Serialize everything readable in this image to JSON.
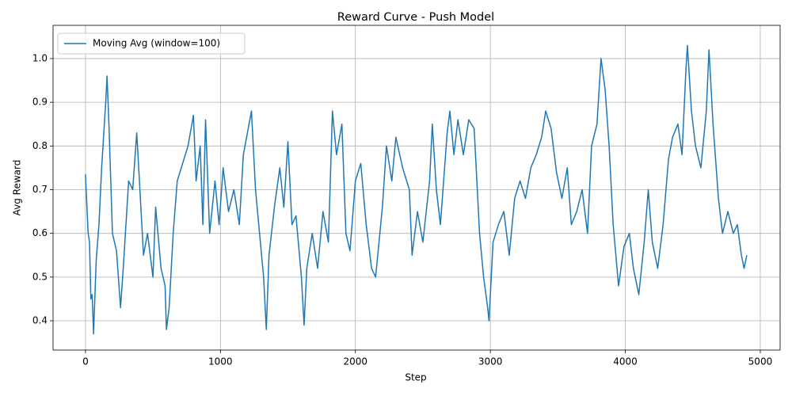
{
  "chart_data": {
    "type": "line",
    "title": "Reward Curve - Push Model",
    "x_label": "Step",
    "y_label": "Avg Reward",
    "x": [
      0,
      20,
      30,
      40,
      50,
      60,
      80,
      100,
      120,
      140,
      150,
      160,
      175,
      200,
      230,
      260,
      280,
      300,
      320,
      350,
      380,
      400,
      430,
      460,
      500,
      520,
      560,
      590,
      600,
      620,
      650,
      680,
      720,
      760,
      800,
      820,
      850,
      870,
      890,
      920,
      960,
      990,
      1020,
      1060,
      1100,
      1140,
      1170,
      1200,
      1230,
      1260,
      1290,
      1320,
      1340,
      1360,
      1400,
      1440,
      1470,
      1500,
      1530,
      1560,
      1600,
      1620,
      1640,
      1680,
      1720,
      1760,
      1800,
      1830,
      1860,
      1900,
      1930,
      1960,
      2000,
      2040,
      2080,
      2120,
      2150,
      2200,
      2230,
      2270,
      2300,
      2350,
      2400,
      2420,
      2460,
      2500,
      2550,
      2570,
      2600,
      2630,
      2680,
      2700,
      2730,
      2760,
      2800,
      2840,
      2880,
      2920,
      2950,
      2980,
      2990,
      3020,
      3060,
      3100,
      3140,
      3180,
      3220,
      3260,
      3300,
      3340,
      3380,
      3410,
      3450,
      3490,
      3530,
      3570,
      3600,
      3640,
      3680,
      3720,
      3750,
      3790,
      3820,
      3850,
      3880,
      3910,
      3950,
      3990,
      4030,
      4060,
      4100,
      4140,
      4170,
      4200,
      4240,
      4280,
      4320,
      4350,
      4390,
      4420,
      4450,
      4460,
      4490,
      4520,
      4560,
      4600,
      4620,
      4650,
      4690,
      4720,
      4760,
      4800,
      4830,
      4860,
      4880,
      4900
    ],
    "series": [
      {
        "name": "Moving Avg (window=100)",
        "color": "#1f77b4",
        "values": [
          0.735,
          0.6,
          0.58,
          0.45,
          0.46,
          0.37,
          0.54,
          0.62,
          0.75,
          0.85,
          0.9,
          0.96,
          0.84,
          0.6,
          0.56,
          0.43,
          0.52,
          0.62,
          0.72,
          0.7,
          0.83,
          0.72,
          0.55,
          0.6,
          0.5,
          0.66,
          0.52,
          0.48,
          0.38,
          0.43,
          0.6,
          0.72,
          0.76,
          0.8,
          0.87,
          0.72,
          0.8,
          0.62,
          0.86,
          0.6,
          0.72,
          0.62,
          0.75,
          0.65,
          0.7,
          0.62,
          0.78,
          0.83,
          0.88,
          0.7,
          0.6,
          0.5,
          0.38,
          0.55,
          0.66,
          0.75,
          0.66,
          0.81,
          0.62,
          0.64,
          0.5,
          0.39,
          0.52,
          0.6,
          0.52,
          0.65,
          0.58,
          0.88,
          0.78,
          0.85,
          0.6,
          0.56,
          0.72,
          0.76,
          0.62,
          0.52,
          0.5,
          0.66,
          0.8,
          0.72,
          0.82,
          0.75,
          0.7,
          0.55,
          0.65,
          0.58,
          0.72,
          0.85,
          0.7,
          0.62,
          0.83,
          0.88,
          0.78,
          0.86,
          0.78,
          0.86,
          0.84,
          0.6,
          0.5,
          0.43,
          0.4,
          0.58,
          0.62,
          0.65,
          0.55,
          0.68,
          0.72,
          0.68,
          0.75,
          0.78,
          0.82,
          0.88,
          0.84,
          0.74,
          0.68,
          0.75,
          0.62,
          0.65,
          0.7,
          0.6,
          0.8,
          0.85,
          1.0,
          0.93,
          0.8,
          0.62,
          0.48,
          0.57,
          0.6,
          0.52,
          0.46,
          0.58,
          0.7,
          0.58,
          0.52,
          0.62,
          0.77,
          0.82,
          0.85,
          0.78,
          0.98,
          1.03,
          0.88,
          0.8,
          0.75,
          0.88,
          1.02,
          0.85,
          0.68,
          0.6,
          0.65,
          0.6,
          0.62,
          0.55,
          0.52,
          0.55
        ]
      }
    ],
    "xlim": [
      -240,
      5147
    ],
    "ylim": [
      0.333,
      1.076
    ],
    "xticks": [
      0,
      1000,
      2000,
      3000,
      4000,
      5000
    ],
    "yticks": [
      {
        "value": 0.4,
        "label": "0.4"
      },
      {
        "value": 0.5,
        "label": "0.5"
      },
      {
        "value": 0.6,
        "label": "0.6"
      },
      {
        "value": 0.7,
        "label": "0.7"
      },
      {
        "value": 0.8,
        "label": "0.8"
      },
      {
        "value": 0.9,
        "label": "0.9"
      },
      {
        "value": 1.0,
        "label": "1.0"
      }
    ],
    "grid": true,
    "legend": "upper left"
  }
}
